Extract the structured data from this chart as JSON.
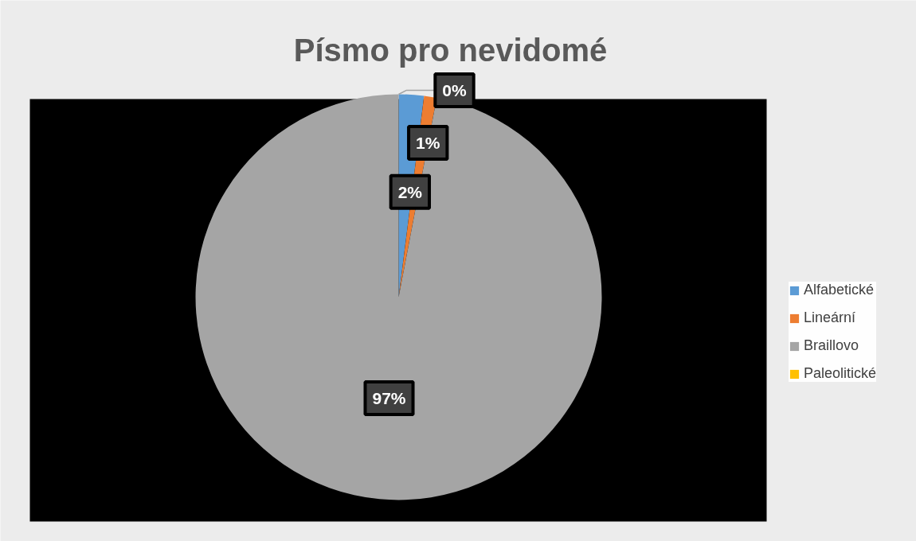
{
  "chart_data": {
    "type": "pie",
    "title": "Písmo pro nevidomé",
    "categories": [
      "Alfabetické",
      "Lineární",
      "Braillovo",
      "Paleolitické"
    ],
    "values": [
      2,
      1,
      97,
      0
    ],
    "colors": [
      "#5b9bd5",
      "#ed7d31",
      "#a5a5a5",
      "#ffc000"
    ],
    "value_labels": [
      "2%",
      "1%",
      "97%",
      "0%"
    ],
    "legend": "right"
  }
}
